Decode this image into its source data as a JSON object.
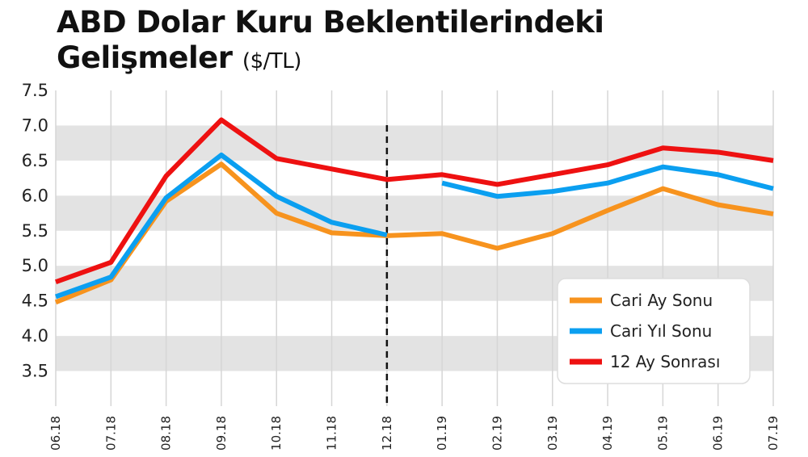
{
  "chart_data": {
    "type": "line",
    "title_line1": "ABD Dolar Kuru Beklentilerindeki",
    "title_line2": "Gelişmeler",
    "unit": "($/TL)",
    "categories": [
      "06.18",
      "07.18",
      "08.18",
      "09.18",
      "10.18",
      "11.18",
      "12.18",
      "01.19",
      "02.19",
      "03.19",
      "04.19",
      "05.19",
      "06.19",
      "07.19"
    ],
    "yticks": [
      "7.5",
      "7.0",
      "6.5",
      "6.0",
      "5.5",
      "5.0",
      "4.5",
      "4.0",
      "3.5"
    ],
    "ylim": [
      3.0,
      7.5
    ],
    "marker_category": "12.18",
    "legend_position": "bottom-right",
    "series": [
      {
        "name": "Cari Ay Sonu",
        "color": "#f7931e",
        "values": [
          4.48,
          4.8,
          5.92,
          6.45,
          5.75,
          5.47,
          5.43,
          5.46,
          5.25,
          5.46,
          5.79,
          6.1,
          5.87,
          5.74
        ]
      },
      {
        "name": "Cari Yıl Sonu",
        "color": "#0b9ff0",
        "values": [
          4.56,
          4.84,
          5.97,
          6.58,
          5.99,
          5.62,
          5.44,
          null,
          5.99,
          6.06,
          6.18,
          6.41,
          6.3,
          6.1
        ],
        "break_values": {
          "01.19": 6.18
        }
      },
      {
        "name": "12 Ay Sonrası",
        "color": "#ee1111",
        "values": [
          4.77,
          5.05,
          6.28,
          7.08,
          6.53,
          6.38,
          6.23,
          6.3,
          6.16,
          6.3,
          6.44,
          6.68,
          6.62,
          6.5
        ]
      }
    ]
  }
}
